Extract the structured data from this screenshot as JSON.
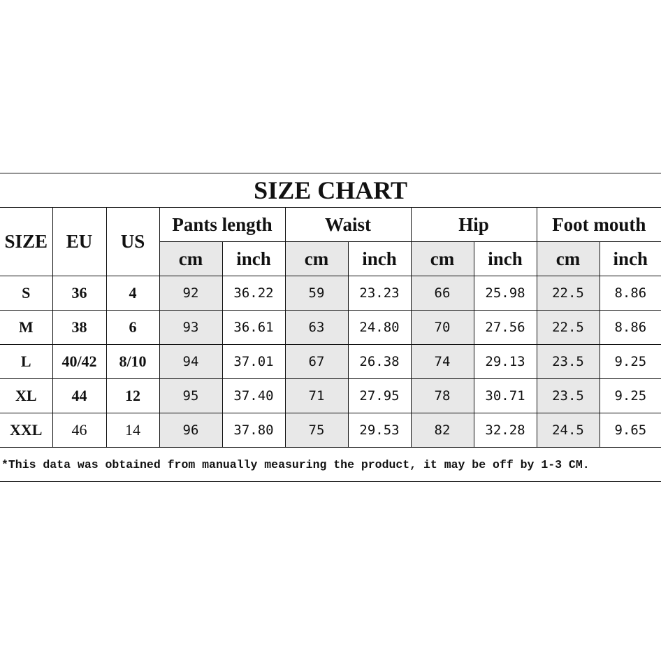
{
  "title": "SIZE CHART",
  "headers": {
    "size": "SIZE",
    "eu": "EU",
    "us": "US",
    "groups": [
      "Pants length",
      "Waist",
      "Hip",
      "Foot mouth"
    ],
    "cm": "cm",
    "inch": "inch"
  },
  "rows": [
    {
      "size": "S",
      "eu": "36",
      "us": "4",
      "values": [
        "92",
        "36.22",
        "59",
        "23.23",
        "66",
        "25.98",
        "22.5",
        "8.86"
      ]
    },
    {
      "size": "M",
      "eu": "38",
      "us": "6",
      "values": [
        "93",
        "36.61",
        "63",
        "24.80",
        "70",
        "27.56",
        "22.5",
        "8.86"
      ]
    },
    {
      "size": "L",
      "eu": "40/42",
      "us": "8/10",
      "values": [
        "94",
        "37.01",
        "67",
        "26.38",
        "74",
        "29.13",
        "23.5",
        "9.25"
      ]
    },
    {
      "size": "XL",
      "eu": "44",
      "us": "12",
      "values": [
        "95",
        "37.40",
        "71",
        "27.95",
        "78",
        "30.71",
        "23.5",
        "9.25"
      ]
    },
    {
      "size": "XXL",
      "eu": "46",
      "us": "14",
      "values": [
        "96",
        "37.80",
        "75",
        "29.53",
        "82",
        "32.28",
        "24.5",
        "9.65"
      ]
    }
  ],
  "note": "*This data was obtained from manually measuring the product, it may be off by 1-3 CM.",
  "colors": {
    "cm_cell_bg": "#e8e8e8",
    "border": "#111111"
  }
}
